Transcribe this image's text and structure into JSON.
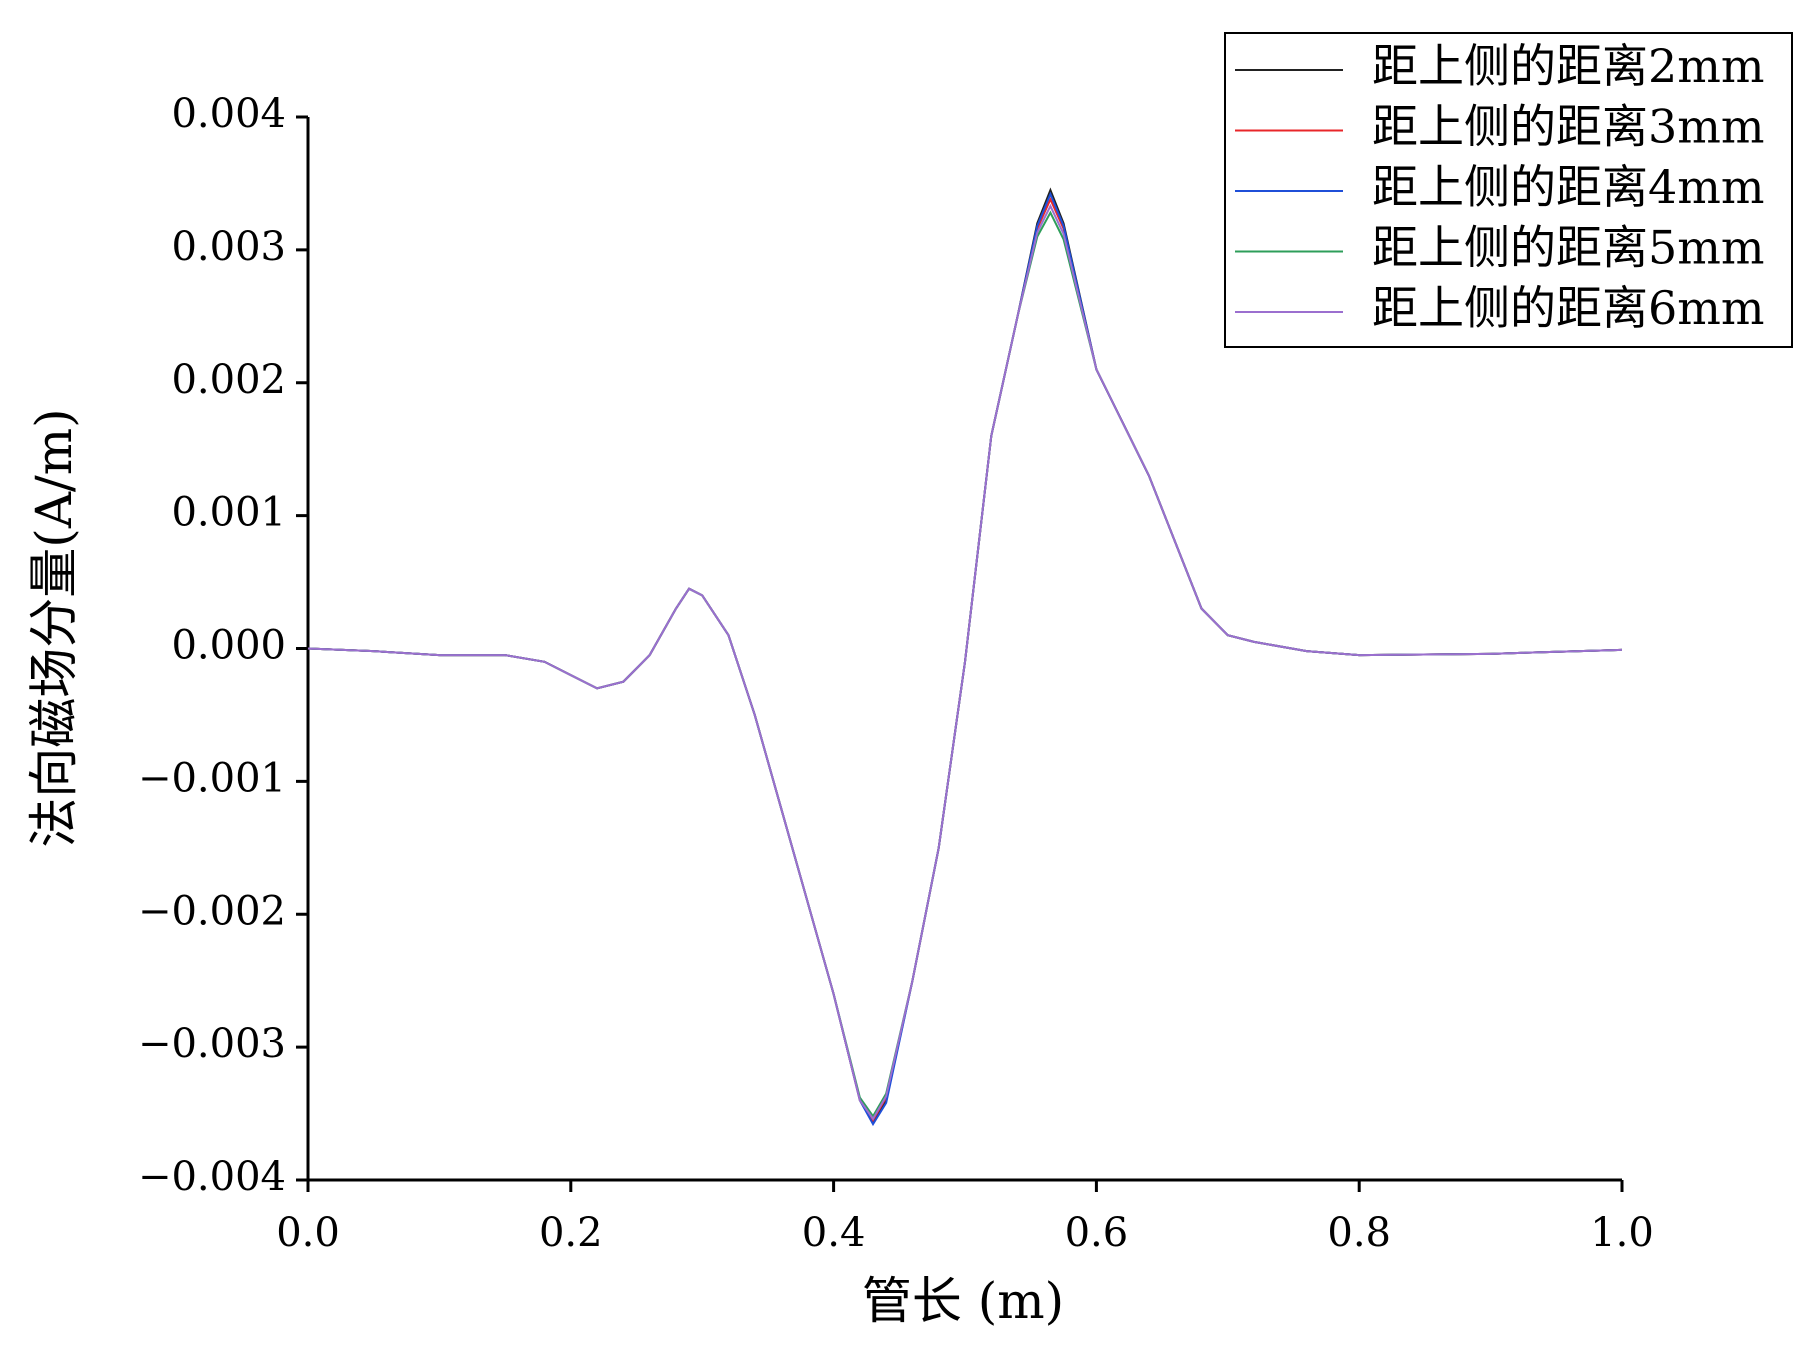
{
  "chart_data": {
    "type": "line",
    "x_label": "管长 (m)",
    "y_label": "法向磁场分量(A/m)",
    "x": [
      0,
      0.05,
      0.1,
      0.15,
      0.18,
      0.2,
      0.22,
      0.24,
      0.26,
      0.28,
      0.29,
      0.3,
      0.32,
      0.34,
      0.36,
      0.38,
      0.4,
      0.42,
      0.43,
      0.44,
      0.46,
      0.48,
      0.5,
      0.52,
      0.54,
      0.555,
      0.565,
      0.575,
      0.6,
      0.62,
      0.64,
      0.66,
      0.68,
      0.7,
      0.72,
      0.76,
      0.8,
      0.9,
      1.0
    ],
    "series": [
      {
        "name": "距上侧的距离2mm",
        "color": "#222222",
        "values": [
          0,
          -2e-05,
          -5e-05,
          -5e-05,
          -0.0001,
          -0.0002,
          -0.0003,
          -0.00025,
          -5e-05,
          0.0003,
          0.00045,
          0.0004,
          0.0001,
          -0.0005,
          -0.0012,
          -0.0019,
          -0.0026,
          -0.0034,
          -0.00357,
          -0.0034,
          -0.0025,
          -0.0015,
          -0.0001,
          0.0016,
          0.0025,
          0.0032,
          0.00345,
          0.0032,
          0.0021,
          0.0017,
          0.0013,
          0.0008,
          0.0003,
          0.0001,
          5e-05,
          -2e-05,
          -5e-05,
          -4e-05,
          -1e-05
        ]
      },
      {
        "name": "距上侧的距离3mm",
        "color": "#e8262a",
        "values": [
          0,
          -2e-05,
          -5e-05,
          -5e-05,
          -0.0001,
          -0.0002,
          -0.0003,
          -0.00025,
          -5e-05,
          0.0003,
          0.00045,
          0.0004,
          0.0001,
          -0.0005,
          -0.0012,
          -0.0019,
          -0.0026,
          -0.0034,
          -0.00355,
          -0.00338,
          -0.0025,
          -0.0015,
          -0.0001,
          0.0016,
          0.0025,
          0.00316,
          0.00338,
          0.00316,
          0.0021,
          0.0017,
          0.0013,
          0.0008,
          0.0003,
          0.0001,
          5e-05,
          -2e-05,
          -5e-05,
          -4e-05,
          -1e-05
        ]
      },
      {
        "name": "距上侧的距离4mm",
        "color": "#1f4fd8",
        "values": [
          0,
          -2e-05,
          -5e-05,
          -5e-05,
          -0.0001,
          -0.0002,
          -0.0003,
          -0.00025,
          -5e-05,
          0.0003,
          0.00045,
          0.0004,
          0.0001,
          -0.0005,
          -0.0012,
          -0.0019,
          -0.0026,
          -0.0034,
          -0.00358,
          -0.00342,
          -0.0025,
          -0.0015,
          -0.0001,
          0.0016,
          0.0025,
          0.00318,
          0.00342,
          0.00318,
          0.0021,
          0.0017,
          0.0013,
          0.0008,
          0.0003,
          0.0001,
          5e-05,
          -2e-05,
          -5e-05,
          -4e-05,
          -1e-05
        ]
      },
      {
        "name": "距上侧的距离5mm",
        "color": "#2e9e5a",
        "values": [
          0,
          -2e-05,
          -5e-05,
          -5e-05,
          -0.0001,
          -0.0002,
          -0.0003,
          -0.00025,
          -5e-05,
          0.0003,
          0.00045,
          0.0004,
          0.0001,
          -0.0005,
          -0.0012,
          -0.0019,
          -0.0026,
          -0.00338,
          -0.00352,
          -0.00335,
          -0.0025,
          -0.0015,
          -0.0001,
          0.0016,
          0.0025,
          0.0031,
          0.00328,
          0.00308,
          0.0021,
          0.0017,
          0.0013,
          0.0008,
          0.0003,
          0.0001,
          5e-05,
          -2e-05,
          -5e-05,
          -4e-05,
          -1e-05
        ]
      },
      {
        "name": "距上侧的距离6mm",
        "color": "#9b6fcf",
        "values": [
          0,
          -2e-05,
          -5e-05,
          -5e-05,
          -0.0001,
          -0.0002,
          -0.0003,
          -0.00025,
          -5e-05,
          0.0003,
          0.00045,
          0.0004,
          0.0001,
          -0.0005,
          -0.0012,
          -0.0019,
          -0.0026,
          -0.0034,
          -0.00354,
          -0.00337,
          -0.0025,
          -0.0015,
          -0.0001,
          0.0016,
          0.0025,
          0.00313,
          0.00333,
          0.00312,
          0.0021,
          0.0017,
          0.0013,
          0.0008,
          0.0003,
          0.0001,
          5e-05,
          -2e-05,
          -5e-05,
          -4e-05,
          -1e-05
        ]
      }
    ],
    "xlim": [
      0,
      1
    ],
    "xticks": [
      {
        "value": 0,
        "label": "0.0"
      },
      0.2,
      0.4,
      0.6,
      0.8,
      {
        "value": 1,
        "label": "1.0"
      }
    ],
    "ylim": [
      -0.004,
      0.004
    ],
    "yticks": [
      {
        "value": -0.004,
        "label": "−0.004"
      },
      {
        "value": -0.003,
        "label": "−0.003"
      },
      {
        "value": -0.002,
        "label": "−0.002"
      },
      {
        "value": -0.001,
        "label": "−0.001"
      },
      {
        "value": 0,
        "label": "0.000"
      },
      0.001,
      0.002,
      0.003,
      0.004
    ],
    "legend": "top-right"
  }
}
